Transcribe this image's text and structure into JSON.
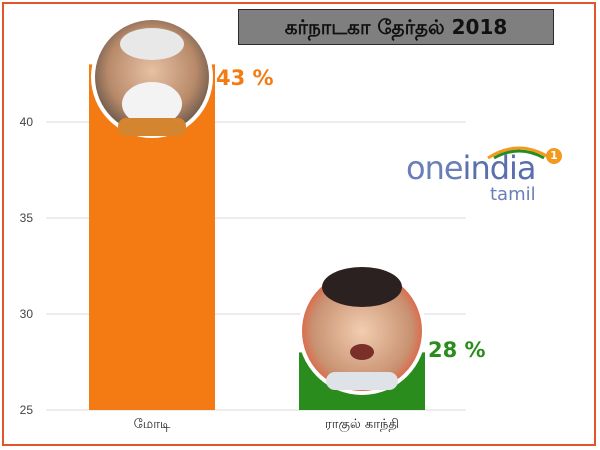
{
  "title": "கர்நாடகா தேர்தல் 2018",
  "logo": {
    "main_one": "one",
    "main_india": "india",
    "sub": "tamil",
    "badge": "1"
  },
  "chart_data": {
    "type": "bar",
    "title": "கர்நாடகா தேர்தல் 2018",
    "categories": [
      "மோடி",
      "ராகுல் காந்தி"
    ],
    "values": [
      43,
      28
    ],
    "data_labels": [
      "43 %",
      "28 %"
    ],
    "colors": [
      "#f47b13",
      "#2a8c1c"
    ],
    "label_colors": [
      "#f47b13",
      "#2a8c1c"
    ],
    "ylim": [
      25,
      43
    ],
    "yticks": [
      25,
      30,
      35,
      40
    ],
    "grid": true,
    "legend": "none"
  }
}
